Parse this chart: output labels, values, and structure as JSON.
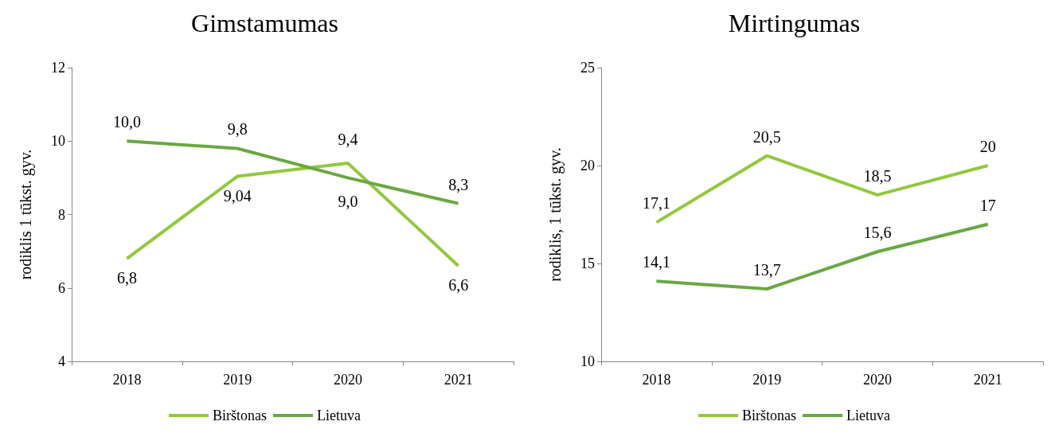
{
  "chart_data": [
    {
      "type": "line",
      "title": "Gimstamumas",
      "ylabel": "rodiklis 1 tūkst. gyv.",
      "categories": [
        "2018",
        "2019",
        "2020",
        "2021"
      ],
      "ylim": [
        4,
        12
      ],
      "yticks": [
        4,
        6,
        8,
        10,
        12
      ],
      "grid": false,
      "legend": "bottom",
      "marker": "none",
      "line_style": "solid",
      "series": [
        {
          "name": "Birštonas",
          "color": "#92c83e",
          "values": [
            6.8,
            9.04,
            9.4,
            6.6
          ],
          "value_labels": [
            "6,8",
            "9,04",
            "9,4",
            "6,6"
          ]
        },
        {
          "name": "Lietuva",
          "color": "#6aa842",
          "values": [
            10.0,
            9.8,
            9.0,
            8.3
          ],
          "value_labels": [
            "10,0",
            "9,8",
            "9,0",
            "8,3"
          ]
        }
      ]
    },
    {
      "type": "line",
      "title": "Mirtingumas",
      "ylabel": "rodiklis, 1 tūkst. gyv.",
      "categories": [
        "2018",
        "2019",
        "2020",
        "2021"
      ],
      "ylim": [
        10,
        25
      ],
      "yticks": [
        10,
        15,
        20,
        25
      ],
      "grid": false,
      "legend": "bottom",
      "marker": "none",
      "line_style": "solid",
      "series": [
        {
          "name": "Birštonas",
          "color": "#92c83e",
          "values": [
            17.1,
            20.5,
            18.5,
            20
          ],
          "value_labels": [
            "17,1",
            "20,5",
            "18,5",
            "20"
          ]
        },
        {
          "name": "Lietuva",
          "color": "#6aa842",
          "values": [
            14.1,
            13.7,
            15.6,
            17
          ],
          "value_labels": [
            "14,1",
            "13,7",
            "15,6",
            "17"
          ]
        }
      ]
    }
  ]
}
